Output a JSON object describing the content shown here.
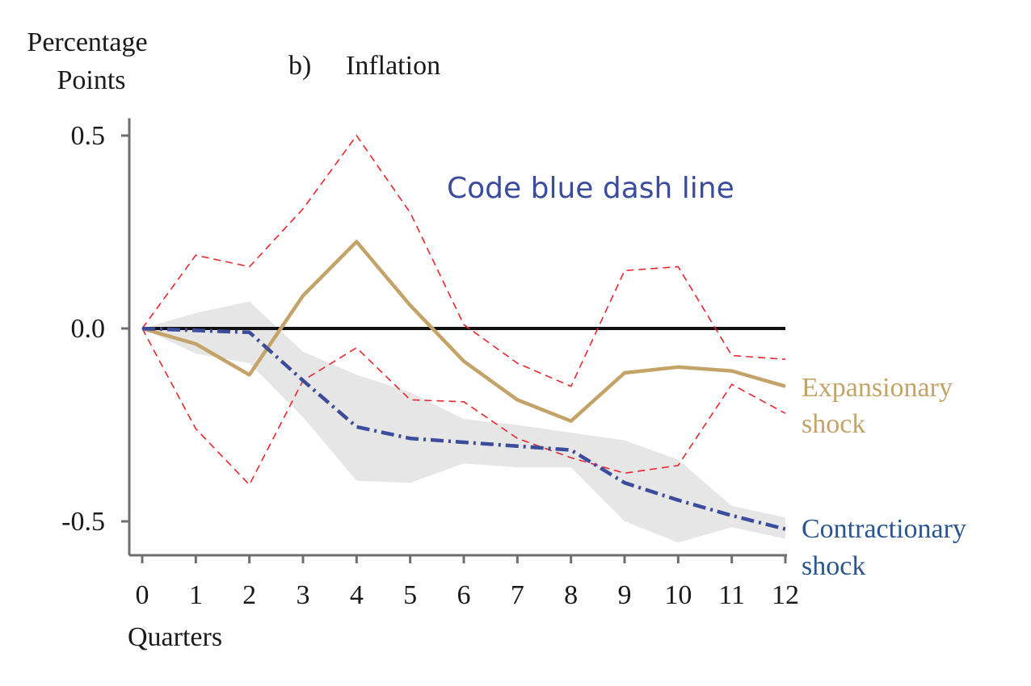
{
  "chart_data": {
    "type": "line",
    "title_prefix": "b)",
    "title": "Inflation",
    "ylabel_line1": "Percentage",
    "ylabel_line2": "Points",
    "xlabel": "Quarters",
    "x": [
      0,
      1,
      2,
      3,
      4,
      5,
      6,
      7,
      8,
      9,
      10,
      11,
      12
    ],
    "xlim": [
      0,
      12
    ],
    "ylim": [
      -0.585,
      0.52
    ],
    "yticks": [
      0.5,
      0.0,
      -0.5
    ],
    "ytick_labels": [
      "0.5",
      "0.0",
      "-0.5"
    ],
    "xtick_labels": [
      "0",
      "1",
      "2",
      "3",
      "4",
      "5",
      "6",
      "7",
      "8",
      "9",
      "10",
      "11",
      "12"
    ],
    "zero_line": 0.0,
    "annotation": "Code blue dash line",
    "series": [
      {
        "key": "expansionary",
        "name_line1": "Expansionary",
        "name_line2": "shock",
        "color": "#C3A368",
        "style": "solid",
        "values": [
          0.0,
          -0.04,
          -0.12,
          0.085,
          0.225,
          0.06,
          -0.085,
          -0.185,
          -0.24,
          -0.115,
          -0.1,
          -0.11,
          -0.15
        ],
        "band": {
          "color": "#E8262C",
          "style": "dashed",
          "upper": [
            0.0,
            0.19,
            0.16,
            0.31,
            0.5,
            0.3,
            0.01,
            -0.09,
            -0.15,
            0.15,
            0.16,
            -0.07,
            -0.08
          ],
          "lower": [
            0.0,
            -0.26,
            -0.405,
            -0.135,
            -0.05,
            -0.185,
            -0.19,
            -0.285,
            -0.335,
            -0.375,
            -0.355,
            -0.145,
            -0.22
          ]
        }
      },
      {
        "key": "contractionary",
        "name_line1": "Contractionary",
        "name_line2": "shock",
        "color": "#3A4C9B",
        "style": "dash-dot",
        "values": [
          0.0,
          -0.005,
          -0.01,
          -0.135,
          -0.255,
          -0.285,
          -0.295,
          -0.305,
          -0.315,
          -0.4,
          -0.445,
          -0.485,
          -0.52
        ],
        "band": {
          "color": "#E6E6E6",
          "style": "filled",
          "upper": [
            0.0,
            0.04,
            0.07,
            -0.06,
            -0.12,
            -0.165,
            -0.235,
            -0.25,
            -0.27,
            -0.29,
            -0.34,
            -0.46,
            -0.49
          ],
          "lower": [
            0.0,
            -0.065,
            -0.09,
            -0.23,
            -0.395,
            -0.4,
            -0.35,
            -0.36,
            -0.36,
            -0.5,
            -0.555,
            -0.515,
            -0.545
          ]
        }
      }
    ]
  }
}
